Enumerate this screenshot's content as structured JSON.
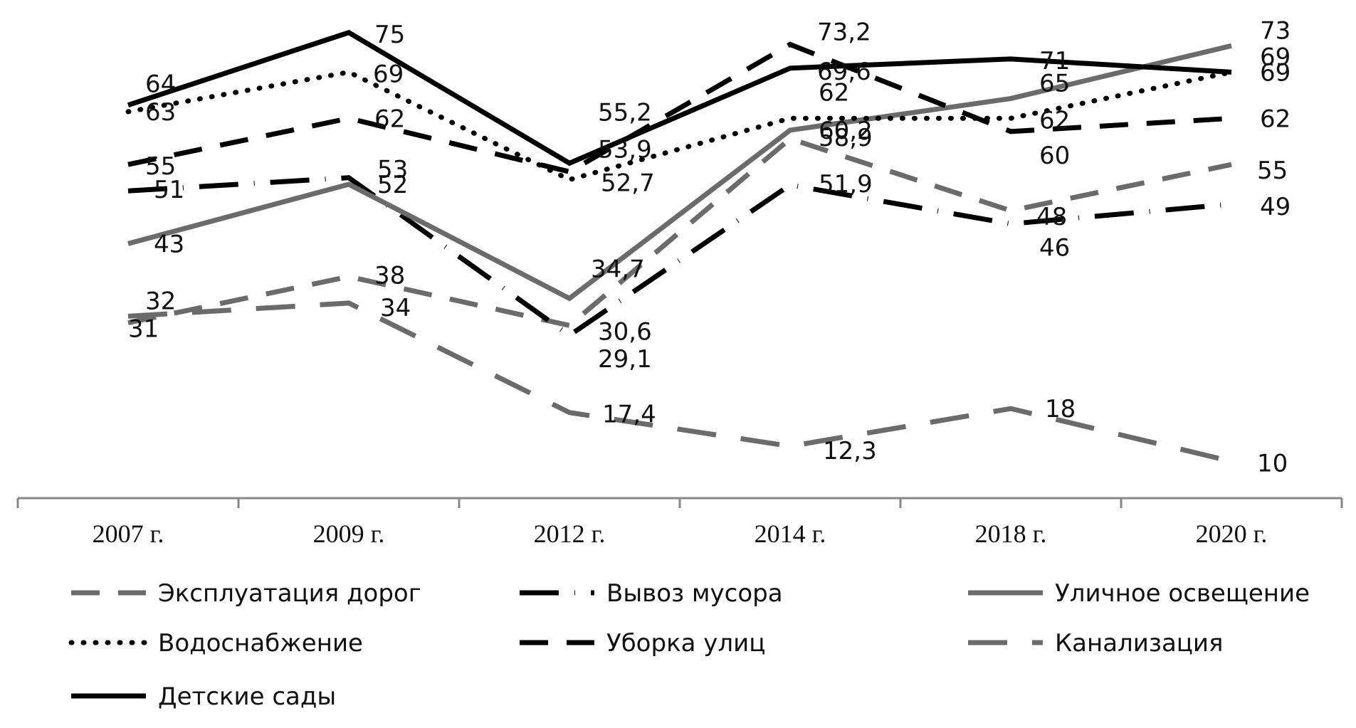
{
  "chart_data": {
    "type": "line",
    "title": "",
    "xlabel": "",
    "ylabel": "",
    "ylim": [
      0,
      80
    ],
    "grid": false,
    "legend_position": "bottom",
    "categories": [
      "2007 г.",
      "2009 г.",
      "2012 г.",
      "2014 г.",
      "2018 г.",
      "2020 г."
    ],
    "series": [
      {
        "name": "Эксплуатация дорог",
        "values": [
          31,
          38,
          30.6,
          58.9,
          48,
          55
        ],
        "labels": [
          "31",
          "38",
          "30,6",
          "58,9",
          "48",
          "55"
        ],
        "color": "#6b6b6b",
        "style": "dashed"
      },
      {
        "name": "Вывоз мусора",
        "values": [
          51,
          53,
          29.1,
          51.9,
          46,
          49
        ],
        "labels": [
          "51",
          "53",
          "29,1",
          "51,9",
          "46",
          "49"
        ],
        "color": "#000000",
        "style": "long-dash-dot"
      },
      {
        "name": "Уличное освещение",
        "values": [
          43,
          52,
          34.7,
          60.2,
          65,
          73
        ],
        "labels": [
          "43",
          "52",
          "34,7",
          "60,2",
          "65",
          "73"
        ],
        "color": "#6b6b6b",
        "style": "solid"
      },
      {
        "name": "Водоснабжение",
        "values": [
          63,
          69,
          52.7,
          62,
          62,
          69
        ],
        "labels": [
          "63",
          "69",
          "52,7",
          "62",
          "62",
          "69"
        ],
        "color": "#000000",
        "style": "dotted"
      },
      {
        "name": "Уборка улиц",
        "values": [
          55,
          62,
          53.9,
          73.2,
          60,
          62
        ],
        "labels": [
          "55",
          "62",
          "53,9",
          "73,2",
          "60",
          "62"
        ],
        "color": "#000000",
        "style": "dashed"
      },
      {
        "name": "Канализация",
        "values": [
          32,
          34,
          17.4,
          12.3,
          18,
          10
        ],
        "labels": [
          "32",
          "34",
          "17,4",
          "12,3",
          "18",
          "10"
        ],
        "color": "#6b6b6b",
        "style": "long-dashed"
      },
      {
        "name": "Детские сады",
        "values": [
          64,
          75,
          55.2,
          69.6,
          71,
          69
        ],
        "labels": [
          "64",
          "75",
          "55,2",
          "69,6",
          "71",
          "69"
        ],
        "color": "#000000",
        "style": "solid"
      }
    ]
  }
}
